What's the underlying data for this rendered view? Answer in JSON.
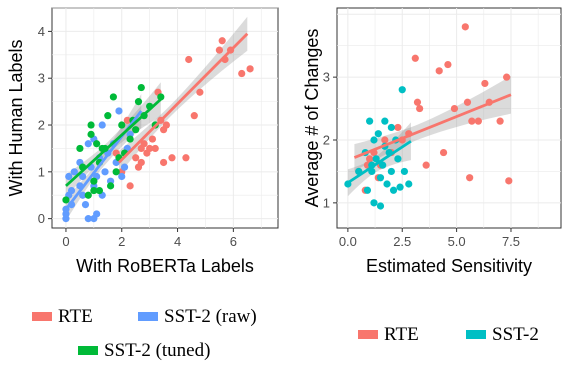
{
  "chart_data": [
    {
      "type": "scatter",
      "xlabel": "With RoBERTa Labels",
      "ylabel": "With Human Labels",
      "xlim": [
        -0.5,
        7.6
      ],
      "ylim": [
        -0.2,
        4.5
      ],
      "xticks": [
        "0",
        "2",
        "4",
        "6"
      ],
      "yticks": [
        "0",
        "1",
        "2",
        "3",
        "4"
      ],
      "grid": true,
      "legend_position": "bottom",
      "series": [
        {
          "name": "RTE",
          "color": "#F8766D",
          "points": [
            [
              2.3,
              0.7
            ],
            [
              2.5,
              1.3
            ],
            [
              2.6,
              1.1
            ],
            [
              2.7,
              1.5
            ],
            [
              2.7,
              1.2
            ],
            [
              2.8,
              1.6
            ],
            [
              2.9,
              1.4
            ],
            [
              3.0,
              1.5
            ],
            [
              3.1,
              1.7
            ],
            [
              3.2,
              1.5
            ],
            [
              3.3,
              2.7
            ],
            [
              3.4,
              2.1
            ],
            [
              3.5,
              1.2
            ],
            [
              3.5,
              1.9
            ],
            [
              3.6,
              2.0
            ],
            [
              3.8,
              1.3
            ],
            [
              4.3,
              1.3
            ],
            [
              4.4,
              3.4
            ],
            [
              4.6,
              2.2
            ],
            [
              4.8,
              2.7
            ],
            [
              5.5,
              3.6
            ],
            [
              5.6,
              3.8
            ],
            [
              5.7,
              3.4
            ],
            [
              5.9,
              3.6
            ],
            [
              6.3,
              3.1
            ],
            [
              6.6,
              3.2
            ],
            [
              2.0,
              1.0
            ],
            [
              1.8,
              1.4
            ],
            [
              2.2,
              2.1
            ]
          ],
          "trend": [
            [
              1.9,
              1.2
            ],
            [
              6.5,
              3.95
            ]
          ]
        },
        {
          "name": "SST-2 (raw)",
          "color": "#619CFF",
          "points": [
            [
              0.0,
              0.0
            ],
            [
              0.0,
              0.2
            ],
            [
              0.1,
              0.5
            ],
            [
              0.1,
              0.9
            ],
            [
              0.2,
              0.3
            ],
            [
              0.3,
              1.0
            ],
            [
              0.5,
              0.7
            ],
            [
              0.5,
              1.2
            ],
            [
              0.6,
              0.5
            ],
            [
              0.7,
              0.3
            ],
            [
              0.8,
              1.6
            ],
            [
              0.8,
              0.0
            ],
            [
              0.9,
              1.1
            ],
            [
              1.0,
              0.7
            ],
            [
              1.0,
              1.7
            ],
            [
              1.1,
              0.1
            ],
            [
              1.1,
              0.9
            ],
            [
              1.2,
              1.3
            ],
            [
              1.3,
              0.5
            ],
            [
              1.3,
              2.0
            ],
            [
              1.4,
              1.0
            ],
            [
              1.5,
              1.4
            ],
            [
              1.6,
              0.8
            ],
            [
              1.7,
              1.6
            ],
            [
              1.8,
              1.2
            ],
            [
              1.9,
              2.3
            ],
            [
              2.0,
              0.9
            ],
            [
              2.1,
              1.1
            ],
            [
              2.2,
              1.5
            ],
            [
              2.3,
              1.8
            ],
            [
              1.0,
              0.0
            ],
            [
              0.6,
              0.9
            ],
            [
              0.0,
              0.1
            ],
            [
              0.2,
              0.6
            ]
          ],
          "trend": [
            [
              0.0,
              0.2
            ],
            [
              2.7,
              2.3
            ]
          ]
        },
        {
          "name": "SST-2 (tuned)",
          "color": "#00BA38",
          "points": [
            [
              0.0,
              0.4
            ],
            [
              0.5,
              1.5
            ],
            [
              0.6,
              1.1
            ],
            [
              0.9,
              2.0
            ],
            [
              0.9,
              1.8
            ],
            [
              1.0,
              0.8
            ],
            [
              1.1,
              1.6
            ],
            [
              1.2,
              0.6
            ],
            [
              1.2,
              1.2
            ],
            [
              1.4,
              1.5
            ],
            [
              1.5,
              2.2
            ],
            [
              1.6,
              0.7
            ],
            [
              1.7,
              2.6
            ],
            [
              1.8,
              1.0
            ],
            [
              1.9,
              1.3
            ],
            [
              2.0,
              2.0
            ],
            [
              2.1,
              1.4
            ],
            [
              2.3,
              1.7
            ],
            [
              2.4,
              2.1
            ],
            [
              2.5,
              1.9
            ],
            [
              2.6,
              2.5
            ],
            [
              2.7,
              2.8
            ],
            [
              2.8,
              2.2
            ],
            [
              3.0,
              2.4
            ],
            [
              3.2,
              2.0
            ],
            [
              3.4,
              2.6
            ],
            [
              1.0,
              0.6
            ],
            [
              0.8,
              0.5
            ],
            [
              1.3,
              1.5
            ]
          ],
          "trend": [
            [
              0.0,
              0.7
            ],
            [
              3.4,
              2.55
            ]
          ]
        }
      ]
    },
    {
      "type": "scatter",
      "xlabel": "Estimated Sensitivity",
      "ylabel": "Average # of Changes",
      "xlim": [
        -0.5,
        9.8
      ],
      "ylim": [
        0.6,
        4.1
      ],
      "xticks": [
        "0.0",
        "2.5",
        "5.0",
        "7.5"
      ],
      "yticks": [
        "1",
        "2",
        "3"
      ],
      "grid": true,
      "legend_position": "bottom",
      "series": [
        {
          "name": "RTE",
          "color": "#F8766D",
          "points": [
            [
              0.5,
              1.5
            ],
            [
              0.8,
              1.2
            ],
            [
              0.9,
              1.6
            ],
            [
              1.0,
              1.7
            ],
            [
              1.2,
              1.8
            ],
            [
              1.5,
              1.6
            ],
            [
              1.7,
              2.0
            ],
            [
              2.0,
              1.8
            ],
            [
              2.3,
              2.2
            ],
            [
              2.5,
              2.0
            ],
            [
              2.8,
              2.1
            ],
            [
              3.1,
              3.3
            ],
            [
              3.2,
              2.6
            ],
            [
              3.3,
              2.5
            ],
            [
              3.6,
              1.6
            ],
            [
              4.2,
              3.1
            ],
            [
              4.4,
              1.8
            ],
            [
              4.6,
              3.2
            ],
            [
              4.9,
              2.5
            ],
            [
              5.4,
              3.8
            ],
            [
              5.5,
              2.6
            ],
            [
              5.6,
              1.4
            ],
            [
              5.7,
              2.3
            ],
            [
              6.0,
              2.3
            ],
            [
              6.3,
              2.9
            ],
            [
              6.5,
              2.6
            ],
            [
              7.0,
              2.3
            ],
            [
              7.3,
              3.0
            ],
            [
              7.4,
              1.35
            ],
            [
              1.4,
              1.4
            ]
          ],
          "trend": [
            [
              0.3,
              1.72
            ],
            [
              7.5,
              2.72
            ]
          ]
        },
        {
          "name": "SST-2",
          "color": "#00BFC4",
          "points": [
            [
              0.0,
              1.3
            ],
            [
              0.5,
              1.5
            ],
            [
              0.8,
              1.8
            ],
            [
              0.9,
              1.2
            ],
            [
              1.0,
              2.3
            ],
            [
              1.1,
              1.5
            ],
            [
              1.2,
              2.0
            ],
            [
              1.2,
              1.0
            ],
            [
              1.3,
              1.7
            ],
            [
              1.4,
              2.1
            ],
            [
              1.5,
              1.4
            ],
            [
              1.5,
              0.95
            ],
            [
              1.6,
              1.6
            ],
            [
              1.7,
              2.3
            ],
            [
              1.8,
              1.3
            ],
            [
              1.9,
              1.8
            ],
            [
              2.0,
              1.5
            ],
            [
              2.0,
              2.2
            ],
            [
              2.1,
              1.2
            ],
            [
              2.2,
              2.0
            ],
            [
              2.3,
              1.7
            ],
            [
              2.4,
              1.25
            ],
            [
              2.5,
              2.8
            ],
            [
              2.6,
              1.5
            ],
            [
              2.8,
              1.3
            ],
            [
              1.1,
              1.6
            ],
            [
              1.7,
              1.9
            ]
          ],
          "trend": [
            [
              0.0,
              1.32
            ],
            [
              2.9,
              1.98
            ]
          ]
        }
      ]
    }
  ],
  "legends": [
    {
      "items": [
        {
          "label": "RTE",
          "color": "#F8766D"
        },
        {
          "label": "SST-2 (raw)",
          "color": "#619CFF"
        },
        {
          "label": "SST-2 (tuned)",
          "color": "#00BA38"
        }
      ]
    },
    {
      "items": [
        {
          "label": "RTE",
          "color": "#F8766D"
        },
        {
          "label": "SST-2",
          "color": "#00BFC4"
        }
      ]
    }
  ]
}
